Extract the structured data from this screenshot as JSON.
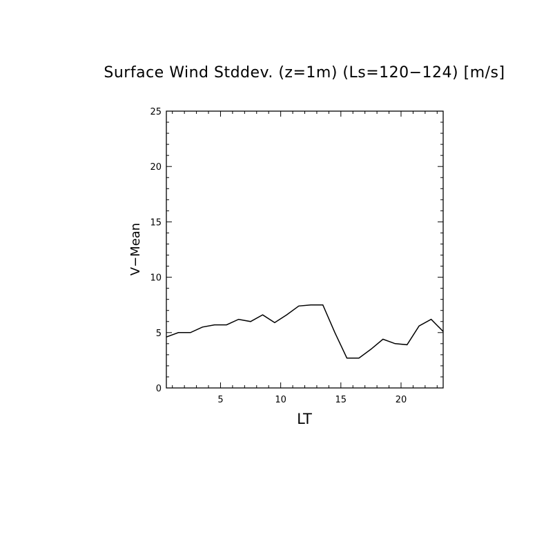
{
  "chart_data": {
    "type": "line",
    "title": "Surface Wind Stddev. (z=1m) (Ls=120−124) [m/s]",
    "xlabel": "LT",
    "ylabel": "V−Mean",
    "xlim": [
      0.5,
      23.5
    ],
    "ylim": [
      0,
      25
    ],
    "xticks": [
      5,
      10,
      15,
      20
    ],
    "yticks": [
      0,
      5,
      10,
      15,
      20,
      25
    ],
    "grid": false,
    "series": [
      {
        "x": [
          0.5,
          1.5,
          2.5,
          3.5,
          4.5,
          5.5,
          6.5,
          7.5,
          8.5,
          9.5,
          10.5,
          11.5,
          12.5,
          13.5,
          14.5,
          15.5,
          16.5,
          17.5,
          18.5,
          19.5,
          20.5,
          21.5,
          22.5,
          23.5
        ],
        "values": [
          4.6,
          5.0,
          5.0,
          5.5,
          5.7,
          5.7,
          6.2,
          6.0,
          6.6,
          5.9,
          6.6,
          7.4,
          7.5,
          7.5,
          5.0,
          2.7,
          2.7,
          3.5,
          4.4,
          4.0,
          3.9,
          5.6,
          6.2,
          5.1
        ]
      }
    ]
  }
}
